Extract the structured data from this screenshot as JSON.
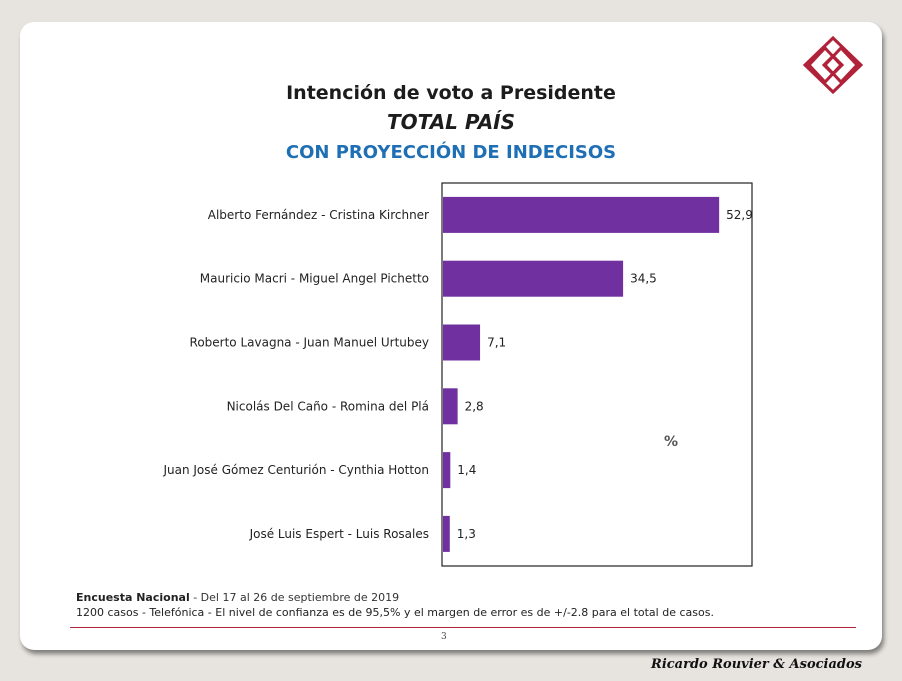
{
  "titles": {
    "line1": "Intención de voto a Presidente",
    "line2": "TOTAL PAÍS",
    "line3": "CON PROYECCIÓN DE INDECISOS"
  },
  "chart_data": {
    "type": "bar",
    "orientation": "horizontal",
    "categories": [
      "Alberto Fernández - Cristina Kirchner",
      "Mauricio Macri - Miguel Angel Pichetto",
      "Roberto Lavagna - Juan Manuel Urtubey",
      "Nicolás Del Caño - Romina del Plá",
      "Juan José Gómez Centurión - Cynthia  Hotton",
      "José Luis Espert - Luis Rosales"
    ],
    "values": [
      52.9,
      34.5,
      7.1,
      2.8,
      1.4,
      1.3
    ],
    "value_labels": [
      "52,9",
      "34,5",
      "7,1",
      "2,8",
      "1,4",
      "1,3"
    ],
    "unit": "%",
    "bar_color": "#7030a0",
    "xlim": [
      0,
      59
    ]
  },
  "footer": {
    "survey_name": "Encuesta Nacional",
    "survey_dates": " - Del 17 al 26 de septiembre de 2019",
    "line2": "1200 casos - Telefónica  - El nivel de confianza es de 95,5% y el margen de error es de +/-2.8 para el total de casos."
  },
  "page_number": "3",
  "company": "Ricardo Rouvier & Asociados",
  "colors": {
    "title_blue": "#1f6fb5",
    "logo_red": "#b0223a",
    "rule": "#b0223a"
  }
}
